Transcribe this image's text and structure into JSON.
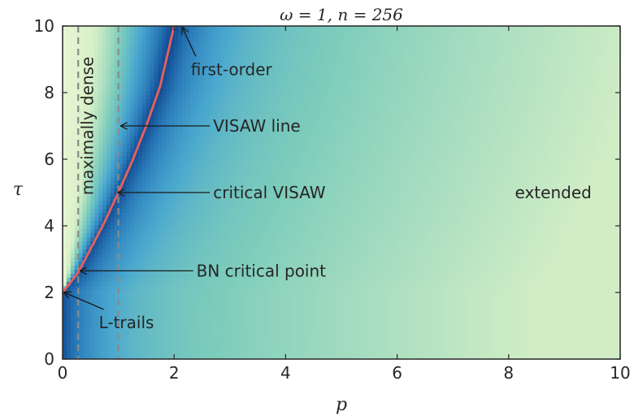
{
  "chart_data": {
    "type": "heatmap",
    "title": "ω = 1, n = 256",
    "xlabel": "p",
    "ylabel": "τ",
    "xlim": [
      0,
      10
    ],
    "ylim": [
      0,
      10
    ],
    "x_ticks": [
      "0",
      "2",
      "4",
      "6",
      "8",
      "10"
    ],
    "y_ticks": [
      "0",
      "2",
      "4",
      "6",
      "8",
      "10"
    ],
    "colormap": [
      "#eef8d8",
      "#d6efc6",
      "#7ecdbb",
      "#49a7cf",
      "#2a7bb9",
      "#0b3f87"
    ],
    "critical_line": {
      "color": "#e06060",
      "points": [
        [
          0.0,
          2.0
        ],
        [
          0.28,
          2.6
        ],
        [
          0.5,
          3.3
        ],
        [
          0.75,
          4.1
        ],
        [
          1.0,
          5.0
        ],
        [
          1.25,
          5.95
        ],
        [
          1.5,
          7.0
        ],
        [
          1.75,
          8.2
        ],
        [
          2.0,
          10.0
        ]
      ]
    },
    "vertical_lines": {
      "color": "#8a8a8a",
      "style": "dashed",
      "x": [
        0.28,
        1.0
      ]
    },
    "annotations": [
      {
        "text": "first-order",
        "text_pos": [
          2.3,
          8.7
        ],
        "arrow_to": [
          2.15,
          9.95
        ]
      },
      {
        "text": "VISAW line",
        "text_pos": [
          2.7,
          7.0
        ],
        "arrow_to": [
          1.05,
          7.0
        ]
      },
      {
        "text": "critical VISAW",
        "text_pos": [
          2.7,
          5.0
        ],
        "arrow_to": [
          1.0,
          5.0
        ]
      },
      {
        "text": "BN critical point",
        "text_pos": [
          2.4,
          2.65
        ],
        "arrow_to": [
          0.32,
          2.65
        ]
      },
      {
        "text": "L-trails",
        "text_pos": [
          0.65,
          1.1
        ],
        "arrow_to": [
          0.03,
          2.0
        ]
      },
      {
        "text": "maximally dense",
        "text_pos": [
          0.55,
          7.0
        ],
        "rotation": -90
      },
      {
        "text": "extended",
        "text_pos": [
          8.8,
          5.0
        ]
      }
    ],
    "grid": false,
    "legend": "none"
  }
}
